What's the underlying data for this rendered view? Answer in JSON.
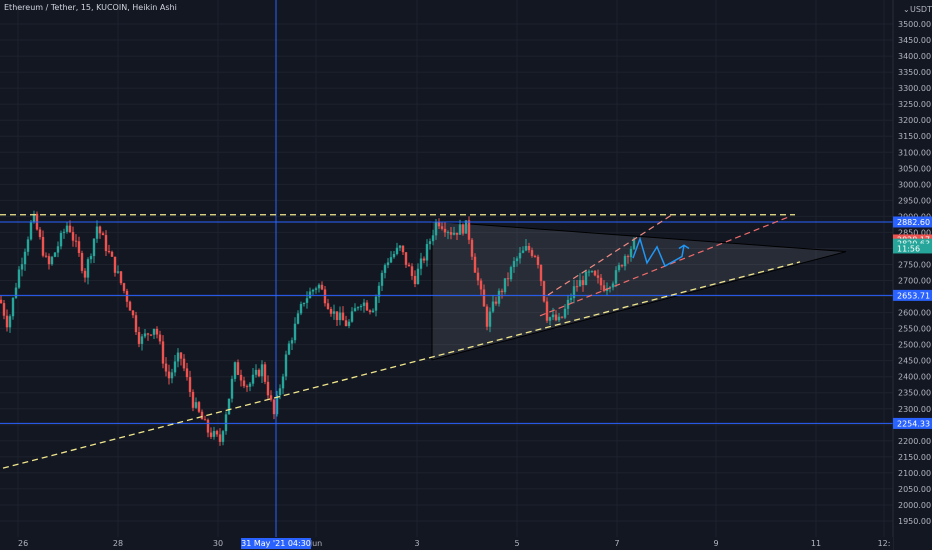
{
  "header": {
    "title": "Ethereum / Tether, 15, KUCOIN, Heikin Ashi",
    "currency": "USDT"
  },
  "chart_data": {
    "type": "candlestick",
    "title": "Ethereum / Tether, 15, KUCOIN, Heikin Ashi",
    "y_tick_labels": [
      "3500.00",
      "3450.00",
      "3400.00",
      "3350.00",
      "3300.00",
      "3250.00",
      "3200.00",
      "3150.00",
      "3100.00",
      "3050.00",
      "3000.00",
      "2950.00",
      "2900.00",
      "2850.00",
      "2800.00",
      "2750.00",
      "2700.00",
      "2650.00",
      "2600.00",
      "2550.00",
      "2500.00",
      "2450.00",
      "2400.00",
      "2350.00",
      "2300.00",
      "2250.00",
      "2200.00",
      "2150.00",
      "2100.00",
      "2050.00",
      "2000.00",
      "1950.00"
    ],
    "ylim": [
      1950,
      3510
    ],
    "x_tick_labels": [
      "26",
      "28",
      "30",
      "Jun",
      "3",
      "5",
      "7",
      "9",
      "11",
      "12:"
    ],
    "crosshair_label": "31 May '21   04:30",
    "horizontal_levels": [
      {
        "value": 2882.6,
        "label": "2882.60",
        "color": "#2962ff"
      },
      {
        "value": 2653.7,
        "label": "2653.71",
        "color": "#2962ff"
      },
      {
        "value": 2254.33,
        "label": "2254.33",
        "color": "#2962ff"
      }
    ],
    "price_tags": [
      {
        "label": "2828.17",
        "color": "#ef5350"
      },
      {
        "label": "2820.63",
        "color": "#26a69a"
      },
      {
        "label": "11:56",
        "color": "#26a69a"
      }
    ],
    "resistance_level": 2905,
    "colors": {
      "up": "#26a69a",
      "down": "#ef5350",
      "level": "#2962ff",
      "dashed": "#f0e68c",
      "channel": "#f06c6c",
      "projection": "#2196f3"
    }
  }
}
